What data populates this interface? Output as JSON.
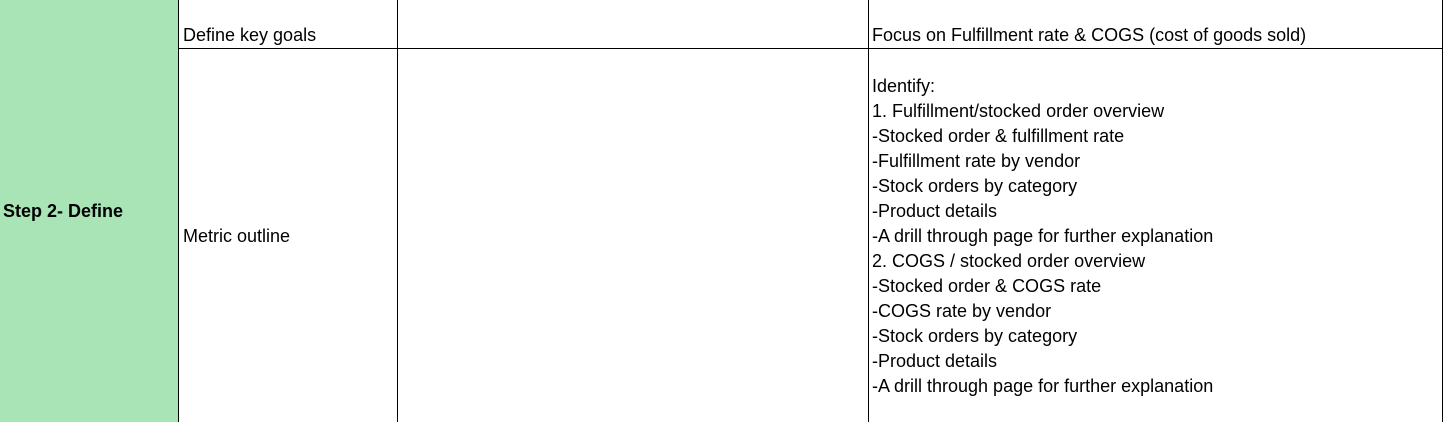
{
  "sheet": {
    "step_label": "Step 2- Define",
    "step_fill_color": "#a9e4b7",
    "rows": [
      {
        "task": "Define key goals",
        "note": "Focus on Fulfillment rate & COGS (cost of goods sold)"
      },
      {
        "task": "Metric outline",
        "note_lines": [
          "Identify:",
          "1. Fulfillment/stocked order overview",
          "-Stocked order & fulfillment rate",
          "-Fulfillment rate by vendor",
          "-Stock orders by category",
          "-Product details",
          "-A drill through page for further explanation",
          "2. COGS / stocked order overview",
          "-Stocked order & COGS rate",
          "-COGS rate by vendor",
          "-Stock orders by category",
          "-Product details",
          "-A drill through page for further explanation"
        ]
      }
    ]
  }
}
